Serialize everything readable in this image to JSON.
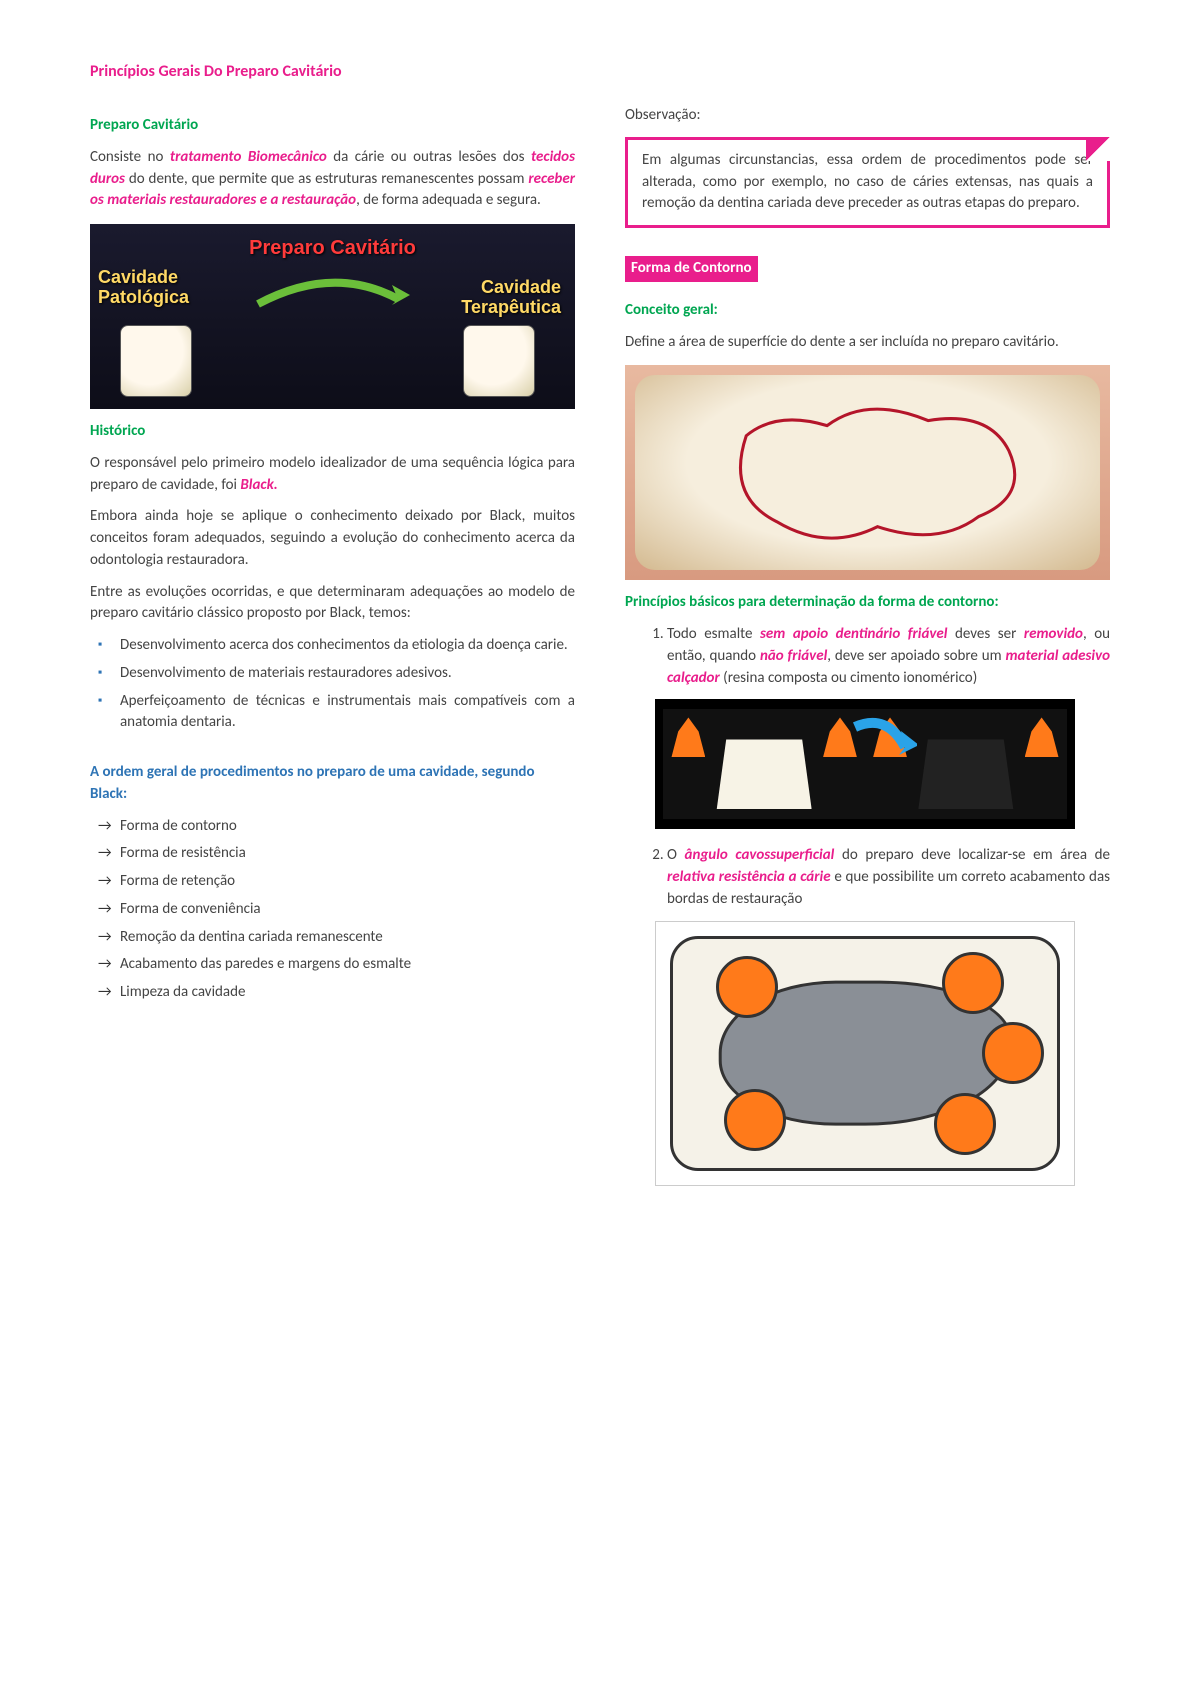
{
  "title": "Princípios Gerais Do Preparo Cavitário",
  "colors": {
    "pink": "#e91e8c",
    "green": "#00a651",
    "blue": "#2e74b5",
    "orange": "#ff7a1a"
  },
  "left": {
    "h1": "Preparo Cavitário",
    "intro_parts": [
      {
        "t": "Consiste no "
      },
      {
        "t": "tratamento Biomecânico",
        "em": true
      },
      {
        "t": " da cárie ou outras lesões dos "
      },
      {
        "t": "tecidos duros",
        "em": true
      },
      {
        "t": " do dente, que permite que as estruturas remanescentes possam "
      },
      {
        "t": "receber os materiais restauradores e a restauração",
        "em": true
      },
      {
        "t": ", de forma adequada e segura."
      }
    ],
    "slide": {
      "title": "Preparo Cavitário",
      "left_label_1": "Cavidade",
      "left_label_2": "Patológica",
      "right_label_1": "Cavidade",
      "right_label_2": "Terapêutica"
    },
    "h2": "Histórico",
    "hist_p1_parts": [
      {
        "t": "O responsável pelo primeiro modelo idealizador de uma sequência lógica para preparo de cavidade, foi "
      },
      {
        "t": "Black.",
        "em": true
      }
    ],
    "hist_p2": "Embora ainda hoje se aplique o conhecimento deixado por Black, muitos conceitos foram adequados, seguindo a evolução do conhecimento acerca da odontologia restauradora.",
    "hist_p3": "Entre as evoluções ocorridas, e que determinaram adequações ao modelo de preparo cavitário clássico proposto por Black, temos:",
    "bullets": [
      "Desenvolvimento acerca dos conhecimentos da etiologia da doença carie.",
      "Desenvolvimento de materiais restauradores adesivos.",
      "Aperfeiçoamento de técnicas e instrumentais mais compatíveis com a anatomia dentaria."
    ],
    "h3": "A ordem geral de procedimentos no preparo de uma cavidade, segundo Black:",
    "arrows": [
      "Forma de contorno",
      "Forma de resistência",
      "Forma de retenção",
      "Forma de conveniência",
      "Remoção da dentina cariada remanescente",
      "Acabamento das paredes e margens do esmalte",
      "Limpeza da cavidade"
    ]
  },
  "right": {
    "obs_label": "Observação:",
    "obs_text": "Em algumas circunstancias, essa ordem de procedimentos pode ser alterada, como por exemplo, no caso de cáries extensas, nas quais a remoção da dentina cariada deve preceder as outras etapas do preparo.",
    "pinkbox": "Forma de Contorno",
    "h_conceito": "Conceito geral:",
    "conceito_text": "Define a área de superfície do dente a ser incluída no preparo cavitário.",
    "h_principios": "Princípios básicos para determinação da forma de contorno:",
    "li1_parts": [
      {
        "t": "Todo esmalte "
      },
      {
        "t": "sem apoio dentinário friável",
        "em": true
      },
      {
        "t": " deves ser "
      },
      {
        "t": "removido",
        "em": true
      },
      {
        "t": ", ou então, quando "
      },
      {
        "t": "não friável",
        "em": true
      },
      {
        "t": ", deve ser apoiado sobre um "
      },
      {
        "t": "material adesivo calçador",
        "em": true
      },
      {
        "t": " (resina composta ou cimento ionomérico)"
      }
    ],
    "li2_parts": [
      {
        "t": "O "
      },
      {
        "t": "ângulo cavossuperficial",
        "em": true
      },
      {
        "t": " do preparo deve localizar-se em área de "
      },
      {
        "t": "relativa resistência a cárie",
        "em": true
      },
      {
        "t": " e que possibilite um correto acabamento das bordas de restauração"
      }
    ]
  }
}
